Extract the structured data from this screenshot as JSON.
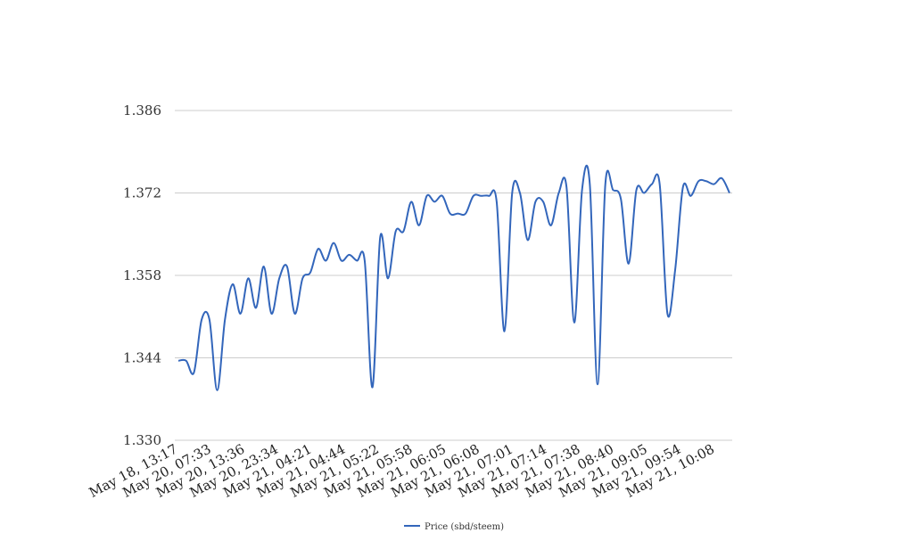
{
  "chart_data": {
    "type": "line",
    "title": "",
    "xlabel": "",
    "ylabel": "",
    "ylim": [
      1.33,
      1.386
    ],
    "yticks": [
      "1.386",
      "1.372",
      "1.358",
      "1.344",
      "1.330"
    ],
    "x_tick_labels": [
      "May 18, 13:17",
      "May 20, 07:33",
      "May 20, 13:36",
      "May 20, 23:34",
      "May 21, 04:21",
      "May 21, 04:44",
      "May 21, 05:22",
      "May 21, 05:58",
      "May 21, 06:05",
      "May 21, 06:08",
      "May 21, 07:01",
      "May 21, 07:14",
      "May 21, 07:38",
      "May 21, 08:40",
      "May 21, 09:05",
      "May 21, 09:54",
      "May 21, 10:08"
    ],
    "grid": true,
    "legend_position": "bottom",
    "colors": {
      "line": "#3366bb",
      "grid": "#cccccc"
    },
    "series": [
      {
        "name": "Price (sbd/steem)",
        "values": [
          1.3435,
          1.3435,
          1.3415,
          1.3505,
          1.3505,
          1.3385,
          1.3505,
          1.3565,
          1.3515,
          1.3575,
          1.3525,
          1.3595,
          1.3515,
          1.3575,
          1.3595,
          1.3515,
          1.3575,
          1.3585,
          1.3625,
          1.3605,
          1.3635,
          1.3605,
          1.3615,
          1.3605,
          1.3605,
          1.339,
          1.3645,
          1.3575,
          1.3655,
          1.3655,
          1.3705,
          1.3665,
          1.3715,
          1.3705,
          1.3715,
          1.3685,
          1.3685,
          1.3685,
          1.3715,
          1.3715,
          1.3715,
          1.3705,
          1.3485,
          1.372,
          1.372,
          1.364,
          1.3705,
          1.3705,
          1.3665,
          1.372,
          1.373,
          1.35,
          1.3725,
          1.3735,
          1.3395,
          1.3735,
          1.3725,
          1.371,
          1.36,
          1.3725,
          1.372,
          1.3735,
          1.3735,
          1.3515,
          1.359,
          1.373,
          1.3715,
          1.374,
          1.374,
          1.3735,
          1.3745,
          1.372
        ]
      }
    ]
  }
}
